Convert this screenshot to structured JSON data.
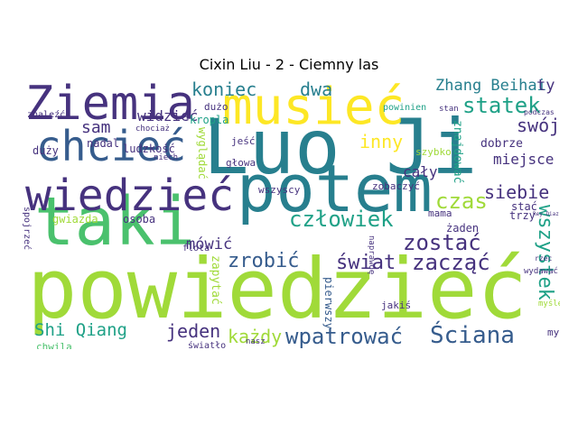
{
  "title": "Cixin Liu - 2 - Ciemny las",
  "palette": {
    "dark_purple": "#46327e",
    "blue": "#365c8d",
    "teal": "#277f8e",
    "green_teal": "#1fa187",
    "green": "#4ac16d",
    "yellow_green": "#a0da39",
    "yellow": "#fde725"
  },
  "words": [
    {
      "text": "powiedzieć",
      "color": "#a0da39",
      "weight": 1.0
    },
    {
      "text": "Luo Ji",
      "color": "#277f8e",
      "weight": 0.95
    },
    {
      "text": "potem",
      "color": "#277f8e",
      "weight": 0.85
    },
    {
      "text": "taki",
      "color": "#4ac16d",
      "weight": 0.8
    },
    {
      "text": "musieć",
      "color": "#fde725",
      "weight": 0.75
    },
    {
      "text": "Ziemia",
      "color": "#46327e",
      "weight": 0.7
    },
    {
      "text": "wiedzieć",
      "color": "#46327e",
      "weight": 0.65
    },
    {
      "text": "chcieć",
      "color": "#365c8d",
      "weight": 0.6
    },
    {
      "text": "wpatrować",
      "color": "#365c8d",
      "weight": 0.4
    },
    {
      "text": "Ściana",
      "color": "#365c8d",
      "weight": 0.4
    },
    {
      "text": "człowiek",
      "color": "#1fa187",
      "weight": 0.35
    },
    {
      "text": "zostać",
      "color": "#46327e",
      "weight": 0.35
    },
    {
      "text": "zacząć",
      "color": "#46327e",
      "weight": 0.35
    },
    {
      "text": "zrobić",
      "color": "#365c8d",
      "weight": 0.33
    },
    {
      "text": "świat",
      "color": "#46327e",
      "weight": 0.33
    },
    {
      "text": "statek",
      "color": "#1fa187",
      "weight": 0.33
    },
    {
      "text": "swój",
      "color": "#46327e",
      "weight": 0.3
    },
    {
      "text": "siebie",
      "color": "#46327e",
      "weight": 0.3
    },
    {
      "text": "czas",
      "color": "#a0da39",
      "weight": 0.3
    },
    {
      "text": "inny",
      "color": "#fde725",
      "weight": 0.3
    },
    {
      "text": "wszystek",
      "color": "#1fa187",
      "weight": 0.32
    },
    {
      "text": "koniec",
      "color": "#277f8e",
      "weight": 0.28
    },
    {
      "text": "dwa",
      "color": "#277f8e",
      "weight": 0.28
    },
    {
      "text": "Zhang Beihai",
      "color": "#277f8e",
      "weight": 0.25
    },
    {
      "text": "ty",
      "color": "#46327e",
      "weight": 0.25
    },
    {
      "text": "jeden",
      "color": "#46327e",
      "weight": 0.28
    },
    {
      "text": "każdy",
      "color": "#a0da39",
      "weight": 0.28
    },
    {
      "text": "Shi Qiang",
      "color": "#1fa187",
      "weight": 0.26
    },
    {
      "text": "mówić",
      "color": "#46327e",
      "weight": 0.24
    },
    {
      "text": "widzieć",
      "color": "#46327e",
      "weight": 0.22
    },
    {
      "text": "sam",
      "color": "#46327e",
      "weight": 0.22
    },
    {
      "text": "miejsce",
      "color": "#46327e",
      "weight": 0.2
    },
    {
      "text": "dobrze",
      "color": "#46327e",
      "weight": 0.16
    },
    {
      "text": "cały",
      "color": "#46327e",
      "weight": 0.2
    },
    {
      "text": "znajdować",
      "color": "#1fa187",
      "weight": 0.16
    },
    {
      "text": "zapytać",
      "color": "#a0da39",
      "weight": 0.16
    },
    {
      "text": "wyglądać",
      "color": "#a0da39",
      "weight": 0.14
    },
    {
      "text": "pierwszy",
      "color": "#365c8d",
      "weight": 0.14
    },
    {
      "text": "nadal",
      "color": "#46327e",
      "weight": 0.14
    },
    {
      "text": "duży",
      "color": "#46327e",
      "weight": 0.14
    },
    {
      "text": "ludzkość",
      "color": "#46327e",
      "weight": 0.14
    },
    {
      "text": "głowa",
      "color": "#46327e",
      "weight": 0.13
    },
    {
      "text": "jeść",
      "color": "#46327e",
      "weight": 0.13
    },
    {
      "text": "wszyscy",
      "color": "#46327e",
      "weight": 0.12
    },
    {
      "text": "zobaczyć",
      "color": "#46327e",
      "weight": 0.12
    },
    {
      "text": "mama",
      "color": "#46327e",
      "weight": 0.12
    },
    {
      "text": "szybko",
      "color": "#a0da39",
      "weight": 0.12
    },
    {
      "text": "gwiazda",
      "color": "#a0da39",
      "weight": 0.14
    },
    {
      "text": "osoba",
      "color": "#46327e",
      "weight": 0.14
    },
    {
      "text": "dużo",
      "color": "#46327e",
      "weight": 0.12
    },
    {
      "text": "kropla",
      "color": "#1fa187",
      "weight": 0.13
    },
    {
      "text": "powinien",
      "color": "#1fa187",
      "weight": 0.1
    },
    {
      "text": "znaleźć",
      "color": "#46327e",
      "weight": 0.11
    },
    {
      "text": "chociaż",
      "color": "#46327e",
      "weight": 0.09
    },
    {
      "text": "niech",
      "color": "#46327e",
      "weight": 0.09
    },
    {
      "text": "stan",
      "color": "#46327e",
      "weight": 0.09
    },
    {
      "text": "naprawdę",
      "color": "#46327e",
      "weight": 0.09
    },
    {
      "text": "stać",
      "color": "#46327e",
      "weight": 0.12
    },
    {
      "text": "trzy",
      "color": "#46327e",
      "weight": 0.12
    },
    {
      "text": "żaden",
      "color": "#46327e",
      "weight": 0.12
    },
    {
      "text": "flota",
      "color": "#46327e",
      "weight": 0.1
    },
    {
      "text": "jakiś",
      "color": "#46327e",
      "weight": 0.11
    },
    {
      "text": "spojrzeć",
      "color": "#46327e",
      "weight": 0.09
    },
    {
      "text": "chwila",
      "color": "#4ac16d",
      "weight": 0.11
    },
    {
      "text": "światło",
      "color": "#46327e",
      "weight": 0.1
    },
    {
      "text": "nasz",
      "color": "#46327e",
      "weight": 0.09
    },
    {
      "text": "myśl",
      "color": "#46327e",
      "weight": 0.1
    },
    {
      "text": "myśleć",
      "color": "#a0da39",
      "weight": 0.09
    },
    {
      "text": "wydawać",
      "color": "#46327e",
      "weight": 0.08
    },
    {
      "text": "podczas",
      "color": "#46327e",
      "weight": 0.07
    },
    {
      "text": "rzec",
      "color": "#46327e",
      "weight": 0.07
    },
    {
      "text": "Rey Diaz",
      "color": "#46327e",
      "weight": 0.05
    }
  ]
}
